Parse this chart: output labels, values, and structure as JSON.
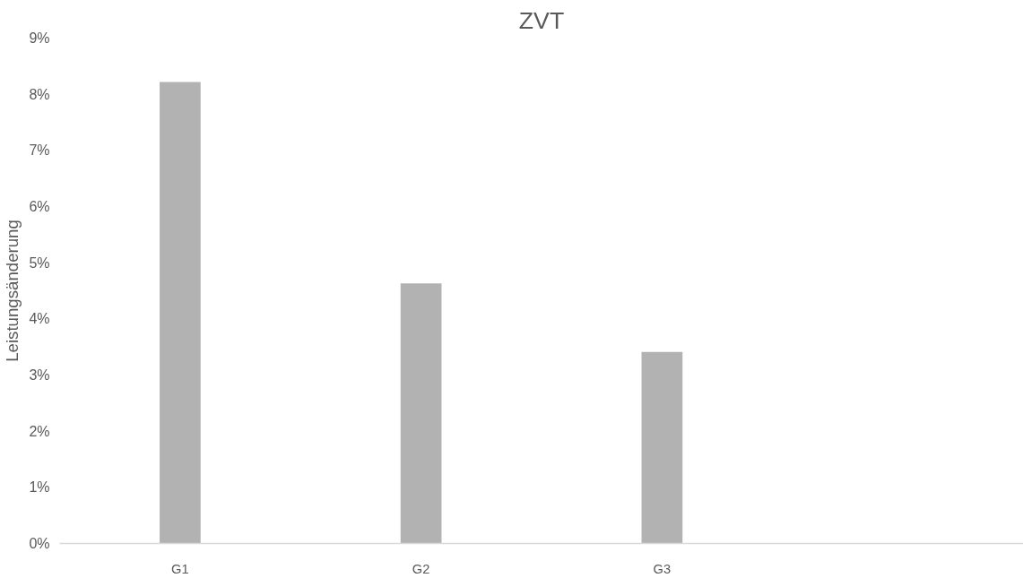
{
  "chart_data": {
    "type": "bar",
    "title": "ZVT",
    "ylabel": "Leistungsänderung",
    "categories": [
      "G1",
      "G2",
      "G3",
      null
    ],
    "values": [
      8.22,
      4.63,
      3.41,
      null
    ],
    "color": "#b2b2b2",
    "ylim": [
      0,
      9
    ],
    "yticks": [
      {
        "value": 0,
        "label": "0%"
      },
      {
        "value": 1,
        "label": "1%"
      },
      {
        "value": 2,
        "label": "2%"
      },
      {
        "value": 3,
        "label": "3%"
      },
      {
        "value": 4,
        "label": "4%"
      },
      {
        "value": 5,
        "label": "5%"
      },
      {
        "value": 6,
        "label": "6%"
      },
      {
        "value": 7,
        "label": "7%"
      },
      {
        "value": 8,
        "label": "8%"
      },
      {
        "value": 9,
        "label": "9%"
      }
    ],
    "grid": false
  }
}
